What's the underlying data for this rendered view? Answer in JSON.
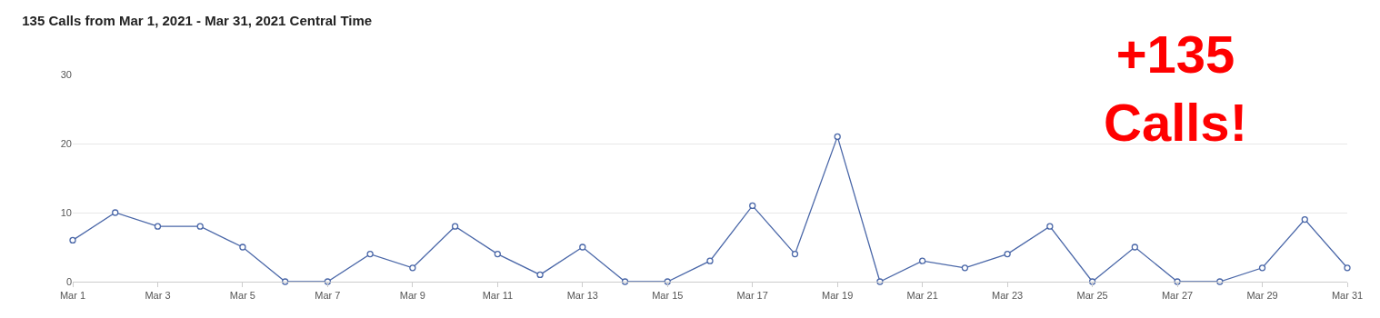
{
  "chart_data": {
    "type": "line",
    "title": "135 Calls from Mar 1, 2021 - Mar 31, 2021 Central Time",
    "x": [
      "2021-03-01",
      "2021-03-02",
      "2021-03-03",
      "2021-03-04",
      "2021-03-05",
      "2021-03-06",
      "2021-03-07",
      "2021-03-08",
      "2021-03-09",
      "2021-03-10",
      "2021-03-11",
      "2021-03-12",
      "2021-03-13",
      "2021-03-14",
      "2021-03-15",
      "2021-03-16",
      "2021-03-17",
      "2021-03-18",
      "2021-03-19",
      "2021-03-20",
      "2021-03-21",
      "2021-03-22",
      "2021-03-23",
      "2021-03-24",
      "2021-03-25",
      "2021-03-26",
      "2021-03-27",
      "2021-03-28",
      "2021-03-29",
      "2021-03-30",
      "2021-03-31"
    ],
    "series": [
      {
        "color": "#4a67a8",
        "values": [
          6,
          10,
          8,
          8,
          5,
          0,
          0,
          4,
          2,
          8,
          4,
          1,
          5,
          0,
          0,
          3,
          11,
          4,
          21,
          0,
          3,
          2,
          4,
          8,
          0,
          5,
          0,
          0,
          2,
          9,
          2
        ]
      }
    ],
    "xlim": [
      "2021-03-01",
      "2021-03-31"
    ],
    "xticks": [
      {
        "value": "2021-03-01",
        "label": "Mar 1"
      },
      {
        "value": "2021-03-03",
        "label": "Mar 3"
      },
      {
        "value": "2021-03-05",
        "label": "Mar 5"
      },
      {
        "value": "2021-03-07",
        "label": "Mar 7"
      },
      {
        "value": "2021-03-09",
        "label": "Mar 9"
      },
      {
        "value": "2021-03-11",
        "label": "Mar 11"
      },
      {
        "value": "2021-03-13",
        "label": "Mar 13"
      },
      {
        "value": "2021-03-15",
        "label": "Mar 15"
      },
      {
        "value": "2021-03-17",
        "label": "Mar 17"
      },
      {
        "value": "2021-03-19",
        "label": "Mar 19"
      },
      {
        "value": "2021-03-21",
        "label": "Mar 21"
      },
      {
        "value": "2021-03-23",
        "label": "Mar 23"
      },
      {
        "value": "2021-03-25",
        "label": "Mar 25"
      },
      {
        "value": "2021-03-27",
        "label": "Mar 27"
      },
      {
        "value": "2021-03-29",
        "label": "Mar 29"
      },
      {
        "value": "2021-03-31",
        "label": "Mar 31"
      }
    ],
    "ylim": [
      0,
      30
    ],
    "yticks": [
      0,
      10,
      20,
      30
    ],
    "grid": "y",
    "marker": "circle",
    "line_style": "solid",
    "annotations": [
      "+135\nCalls!"
    ]
  }
}
